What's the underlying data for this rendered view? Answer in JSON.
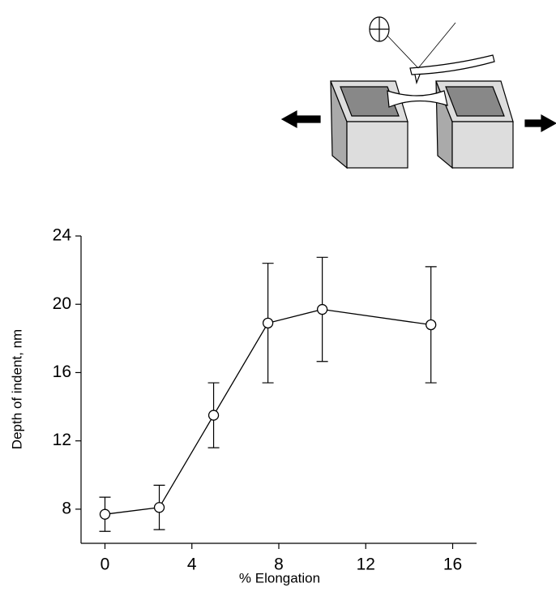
{
  "chart_data": {
    "type": "line",
    "x_label": "% Elongation",
    "y_label": "Depth of indent, nm",
    "x": [
      0,
      2.5,
      5,
      7.5,
      10,
      15
    ],
    "series": [
      {
        "color": "#000000",
        "values": [
          7.7,
          8.1,
          13.5,
          18.9,
          19.7,
          18.8
        ],
        "errors": [
          1.0,
          1.3,
          1.9,
          3.5,
          3.05,
          3.4
        ]
      }
    ],
    "xlim": [
      -1.1,
      17.1
    ],
    "ylim": [
      6,
      24
    ],
    "xticks": [
      0,
      4,
      8,
      12,
      16
    ],
    "yticks": [
      8,
      12,
      16,
      20,
      24
    ]
  }
}
